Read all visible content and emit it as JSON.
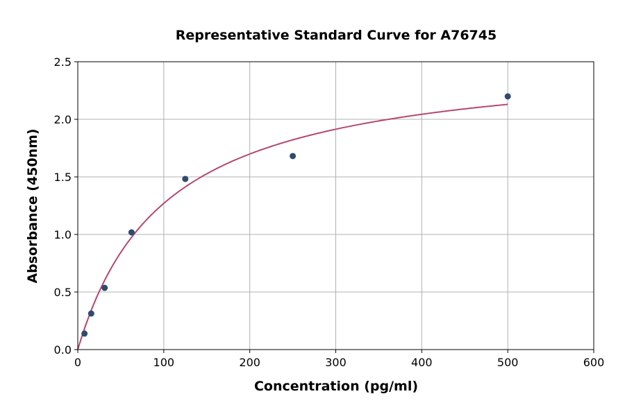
{
  "chart_data": {
    "type": "scatter",
    "title": "Representative Standard Curve for A76745",
    "xlabel": "Concentration (pg/ml)",
    "ylabel": "Absorbance (450nm)",
    "xlim": [
      0,
      600
    ],
    "ylim": [
      0,
      2.5
    ],
    "xticks": [
      "0",
      "100",
      "200",
      "300",
      "400",
      "500",
      "600"
    ],
    "yticks": [
      "0.0",
      "0.5",
      "1.0",
      "1.5",
      "2.0",
      "2.5"
    ],
    "grid": true,
    "series": [
      {
        "x": [
          7.8,
          15.6,
          31.25,
          62.5,
          125,
          250,
          500
        ],
        "y": [
          0.139,
          0.313,
          0.536,
          1.018,
          1.482,
          1.681,
          2.199
        ]
      }
    ],
    "fit_curve": {
      "shown": true
    },
    "colors": {
      "points": "#2f4b6e",
      "curve": "#b5476f",
      "grid": "#b0b0b0"
    }
  }
}
